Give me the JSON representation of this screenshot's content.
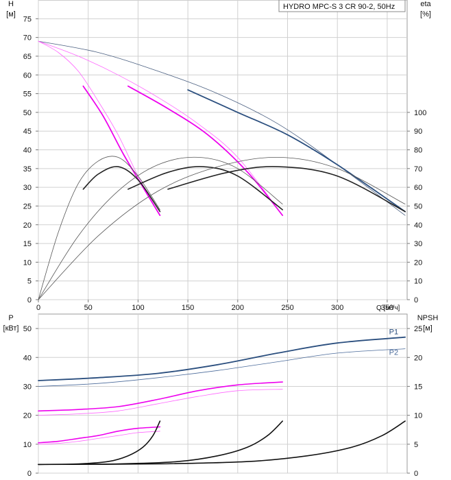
{
  "chart_data": [
    {
      "type": "line",
      "title": "HYDRO MPC-S 3 CR 90-2, 50Hz",
      "xlabel": "Q [м³/ч]",
      "ylabel": [
        "H",
        "[м]"
      ],
      "y2label": [
        "eta",
        "[%]"
      ],
      "xlim": [
        0,
        370
      ],
      "ylim": [
        0,
        80
      ],
      "y2lim": [
        0,
        160
      ],
      "xticks": [
        0,
        50,
        100,
        150,
        200,
        250,
        300,
        350
      ],
      "yticks": [
        0,
        5,
        10,
        15,
        20,
        25,
        30,
        35,
        40,
        45,
        50,
        55,
        60,
        65,
        70,
        75
      ],
      "y2ticks": [
        0,
        10,
        20,
        30,
        40,
        50,
        60,
        70,
        80,
        90,
        100
      ],
      "series": [
        {
          "name": "H 3 pumps thin",
          "color": "#4a5f80",
          "width": 0.8,
          "axis": "y",
          "x": [
            0,
            60,
            120,
            180,
            240,
            300,
            368
          ],
          "y": [
            69,
            66,
            61,
            55,
            47,
            36,
            22.5
          ]
        },
        {
          "name": "H 3 pumps",
          "color": "#2a4e7e",
          "width": 1.8,
          "axis": "y",
          "x": [
            150,
            200,
            250,
            300,
            368
          ],
          "y": [
            56,
            50,
            44,
            36,
            23.5
          ]
        },
        {
          "name": "H 2 pumps thin",
          "color": "#ff66ff",
          "width": 0.8,
          "axis": "y",
          "x": [
            0,
            40,
            80,
            120,
            160,
            200,
            245
          ],
          "y": [
            69,
            65,
            60,
            54,
            47,
            38,
            22.5
          ]
        },
        {
          "name": "H 2 pumps",
          "color": "#ee00ee",
          "width": 1.8,
          "axis": "y",
          "x": [
            90,
            130,
            170,
            210,
            245
          ],
          "y": [
            57,
            51,
            44,
            34,
            22.5
          ]
        },
        {
          "name": "H 1 pump thin",
          "color": "#ff66ff",
          "width": 0.8,
          "axis": "y",
          "x": [
            0,
            20,
            40,
            60,
            80,
            100,
            122
          ],
          "y": [
            69,
            66,
            61,
            53,
            44,
            33,
            22.5
          ]
        },
        {
          "name": "H 1 pump",
          "color": "#ee00ee",
          "width": 1.8,
          "axis": "y",
          "x": [
            45,
            65,
            85,
            105,
            122
          ],
          "y": [
            57,
            49,
            39,
            30,
            22.5
          ]
        },
        {
          "name": "eta 1 pump",
          "color": "#222222",
          "width": 1.6,
          "axis": "y2",
          "x": [
            45,
            60,
            80,
            100,
            122
          ],
          "y": [
            59,
            67,
            71,
            64,
            47
          ]
        },
        {
          "name": "eta 1 pump thin",
          "color": "#555555",
          "width": 0.8,
          "axis": "y2",
          "x": [
            0,
            20,
            40,
            60,
            80,
            100,
            122
          ],
          "y": [
            0,
            36,
            62,
            74,
            76,
            66,
            48
          ]
        },
        {
          "name": "eta 2 pumps",
          "color": "#222222",
          "width": 1.6,
          "axis": "y2",
          "x": [
            90,
            130,
            165,
            200,
            245
          ],
          "y": [
            59,
            68,
            71,
            66,
            48
          ]
        },
        {
          "name": "eta 2 pumps thin",
          "color": "#555555",
          "width": 0.8,
          "axis": "y2",
          "x": [
            0,
            40,
            80,
            120,
            160,
            200,
            245
          ],
          "y": [
            0,
            34,
            58,
            72,
            76,
            70,
            51
          ]
        },
        {
          "name": "eta 3 pumps",
          "color": "#222222",
          "width": 1.6,
          "axis": "y2",
          "x": [
            130,
            190,
            240,
            300,
            368
          ],
          "y": [
            59,
            68,
            71,
            66,
            47
          ]
        },
        {
          "name": "eta 3 pumps thin",
          "color": "#555555",
          "width": 0.8,
          "axis": "y2",
          "x": [
            0,
            60,
            120,
            180,
            240,
            300,
            368
          ],
          "y": [
            0,
            34,
            58,
            71,
            76,
            70,
            51
          ]
        }
      ]
    },
    {
      "type": "line",
      "ylabel": [
        "P",
        "[кВт]"
      ],
      "y2label": [
        "NPSH",
        "[м]"
      ],
      "xlim": [
        0,
        370
      ],
      "ylim": [
        0,
        55
      ],
      "y2lim": [
        0,
        27.5
      ],
      "yticks": [
        0,
        10,
        20,
        30,
        40,
        50
      ],
      "y2ticks": [
        0,
        5,
        10,
        15,
        20,
        25
      ],
      "series": [
        {
          "name": "P1",
          "label": "P1",
          "color": "#2a4e7e",
          "width": 1.8,
          "axis": "y",
          "x": [
            0,
            60,
            120,
            180,
            240,
            300,
            368
          ],
          "y": [
            32,
            33,
            34.5,
            37.5,
            41.5,
            45,
            47
          ]
        },
        {
          "name": "P2",
          "label": "P2",
          "color": "#4a6a9a",
          "width": 0.8,
          "axis": "y",
          "x": [
            0,
            60,
            120,
            180,
            240,
            300,
            368
          ],
          "y": [
            30,
            31,
            33,
            35.5,
            38.5,
            41.5,
            43
          ]
        },
        {
          "name": "P1 2 pumps",
          "color": "#ee00ee",
          "width": 1.6,
          "axis": "y",
          "x": [
            0,
            40,
            80,
            120,
            160,
            200,
            245
          ],
          "y": [
            21.5,
            22,
            23,
            25.5,
            28.5,
            30.5,
            31.5
          ]
        },
        {
          "name": "P2 2 pumps",
          "color": "#ff66ff",
          "width": 0.8,
          "axis": "y",
          "x": [
            0,
            40,
            80,
            120,
            160,
            200,
            245
          ],
          "y": [
            20,
            20.5,
            21.5,
            24,
            26.5,
            28.5,
            29
          ]
        },
        {
          "name": "P1 1 pump",
          "color": "#ee00ee",
          "width": 1.6,
          "axis": "y",
          "x": [
            0,
            20,
            40,
            60,
            80,
            100,
            122
          ],
          "y": [
            10.5,
            11,
            12,
            13,
            14.5,
            15.5,
            16
          ]
        },
        {
          "name": "P2 1 pump",
          "color": "#ff66ff",
          "width": 0.8,
          "axis": "y",
          "x": [
            0,
            20,
            40,
            60,
            80,
            100,
            122
          ],
          "y": [
            10,
            10.3,
            11,
            12,
            13,
            14,
            14.5
          ]
        },
        {
          "name": "NPSH 1 pump",
          "color": "#111111",
          "width": 1.6,
          "axis": "y2",
          "x": [
            0,
            40,
            70,
            90,
            105,
            115,
            122
          ],
          "y": [
            1.5,
            1.6,
            2,
            3,
            4.5,
            6.5,
            9
          ]
        },
        {
          "name": "NPSH 2 pumps",
          "color": "#111111",
          "width": 1.6,
          "axis": "y2",
          "x": [
            0,
            80,
            140,
            180,
            210,
            230,
            245
          ],
          "y": [
            1.5,
            1.6,
            2,
            3,
            4.5,
            6.5,
            9
          ]
        },
        {
          "name": "NPSH 3 pumps",
          "color": "#111111",
          "width": 1.6,
          "axis": "y2",
          "x": [
            0,
            120,
            210,
            270,
            315,
            345,
            368
          ],
          "y": [
            1.5,
            1.6,
            2,
            3,
            4.5,
            6.5,
            9
          ]
        }
      ]
    }
  ]
}
